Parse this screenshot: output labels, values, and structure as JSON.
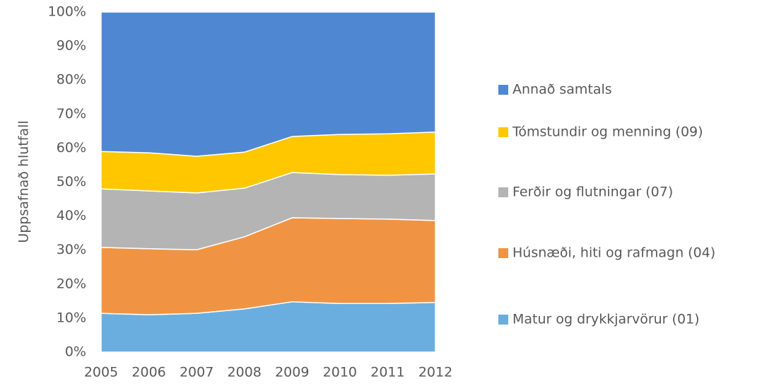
{
  "chart_data": {
    "type": "stacked_area",
    "y_label": "Uppsafnað hlutfall",
    "x": [
      2005,
      2006,
      2007,
      2008,
      2009,
      2010,
      2011,
      2012
    ],
    "xlim": [
      2005,
      2012
    ],
    "ylim": [
      0,
      100
    ],
    "yticks": [
      {
        "value": 0,
        "label": "0%"
      },
      {
        "value": 10,
        "label": "10%"
      },
      {
        "value": 20,
        "label": "20%"
      },
      {
        "value": 30,
        "label": "30%"
      },
      {
        "value": 40,
        "label": "40%"
      },
      {
        "value": 50,
        "label": "50%"
      },
      {
        "value": 60,
        "label": "60%"
      },
      {
        "value": 70,
        "label": "70%"
      },
      {
        "value": 80,
        "label": "80%"
      },
      {
        "value": 90,
        "label": "90%"
      },
      {
        "value": 100,
        "label": "100%"
      }
    ],
    "legend": "right",
    "series": [
      {
        "name": "Matur og drykkjarvörur (01)",
        "color": "#6aaee0",
        "values": [
          11.4,
          11,
          11.4,
          12.7,
          14.8,
          14.3,
          14.3,
          14.6
        ]
      },
      {
        "name": "Húsnæði, hiti og rafmagn (04)",
        "color": "#f09444",
        "values": [
          19.4,
          19.4,
          18.7,
          21.2,
          24.7,
          25,
          24.8,
          24.1
        ]
      },
      {
        "name": "Ferðir og flutningar (07)",
        "color": "#b4b4b4",
        "values": [
          17.2,
          17,
          16.7,
          14.3,
          13.3,
          12.9,
          12.9,
          13.7
        ]
      },
      {
        "name": "Tómstundir og menning (09)",
        "color": "#ffc700",
        "values": [
          11,
          11.2,
          10.8,
          10.6,
          10.6,
          11.8,
          12.2,
          12.3
        ]
      },
      {
        "name": "Annað samtals",
        "color": "#5087d2",
        "values": [
          41,
          41.4,
          42.4,
          41.2,
          36.6,
          36,
          35.8,
          35.3
        ]
      }
    ]
  }
}
